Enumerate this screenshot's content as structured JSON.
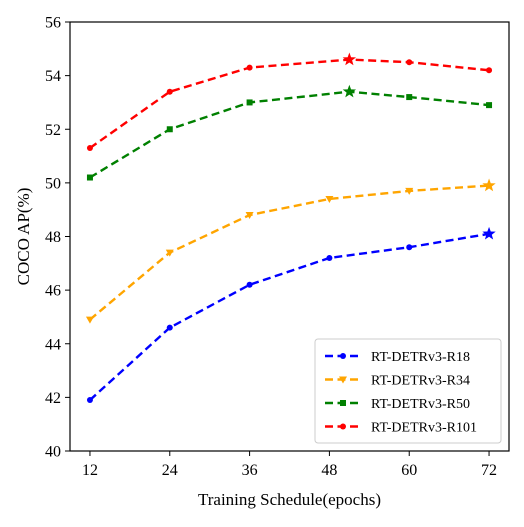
{
  "chart_data": {
    "type": "line",
    "title": "",
    "xlabel": "Training Schedule(epochs)",
    "ylabel": "COCO AP(%)",
    "x_ticks": [
      12,
      24,
      36,
      48,
      60,
      72
    ],
    "y_ticks": [
      40,
      42,
      44,
      46,
      48,
      50,
      52,
      54,
      56
    ],
    "xlim": [
      9,
      75
    ],
    "ylim": [
      40,
      56
    ],
    "grid": false,
    "legend_position": "bottom-right",
    "series": [
      {
        "name": "RT-DETRv3-R18",
        "color": "#0000ff",
        "marker": "dot",
        "highlight_marker": "star",
        "x": [
          12,
          24,
          36,
          48,
          60,
          72
        ],
        "y": [
          41.9,
          44.6,
          46.2,
          47.2,
          47.6,
          48.1
        ],
        "highlight": [
          72,
          48.1
        ]
      },
      {
        "name": "RT-DETRv3-R34",
        "color": "#ffa500",
        "marker": "triangle-down",
        "highlight_marker": "star",
        "x": [
          12,
          24,
          36,
          48,
          60,
          72
        ],
        "y": [
          44.9,
          47.4,
          48.8,
          49.4,
          49.7,
          49.9
        ],
        "highlight": [
          72,
          49.9
        ]
      },
      {
        "name": "RT-DETRv3-R50",
        "color": "#008000",
        "marker": "square",
        "highlight_marker": "star",
        "x": [
          12,
          24,
          36,
          51,
          60,
          72
        ],
        "y": [
          50.2,
          52.0,
          53.0,
          53.4,
          53.2,
          52.9
        ],
        "highlight": [
          51,
          53.4
        ]
      },
      {
        "name": "RT-DETRv3-R101",
        "color": "#ff0000",
        "marker": "dot",
        "highlight_marker": "star",
        "x": [
          12,
          24,
          36,
          51,
          60,
          72
        ],
        "y": [
          51.3,
          53.4,
          54.3,
          54.6,
          54.5,
          54.2
        ],
        "highlight": [
          51,
          54.6
        ]
      }
    ]
  }
}
